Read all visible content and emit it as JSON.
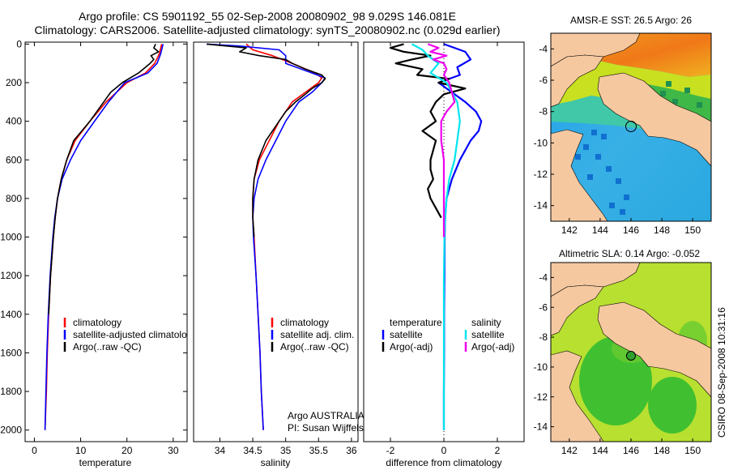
{
  "header": {
    "title_line1": "Argo profile: CS 5901192_55 02-Sep-2008 20080902_98 9.029S 146.081E",
    "title_line2": "Climatology: CARS2006. Satellite-adjusted climatology: synTS_20080902.nc (0.029d earlier)"
  },
  "colors": {
    "climatology": "#ff0000",
    "satellite": "#0000ff",
    "argo": "#000000",
    "salinity_satellite": "#00e5ee",
    "salinity_argo": "#ee00ee",
    "land": "#f5c8a0"
  },
  "chart_data": [
    {
      "type": "line",
      "id": "temperature",
      "xlabel": "temperature",
      "xlim": [
        -2,
        33
      ],
      "xticks": [
        0,
        10,
        20,
        30
      ],
      "ylim": [
        2060,
        -10
      ],
      "yticks": [
        0,
        200,
        400,
        600,
        800,
        1000,
        1200,
        1400,
        1600,
        1800,
        2000
      ],
      "legend": [
        "climatology",
        "satellite-adjusted climatology",
        "Argo(..raw -QC)"
      ],
      "series": [
        {
          "name": "climatology",
          "depth": [
            0,
            50,
            100,
            150,
            200,
            300,
            400,
            500,
            600,
            700,
            800,
            900,
            1000,
            1200,
            1400,
            1600,
            1800,
            2000
          ],
          "values": [
            27.5,
            27.0,
            26.0,
            24.0,
            20.0,
            15.5,
            12.0,
            8.8,
            7.0,
            5.8,
            5.0,
            4.5,
            4.1,
            3.5,
            3.1,
            2.8,
            2.6,
            2.3
          ]
        },
        {
          "name": "satellite",
          "depth": [
            0,
            50,
            100,
            150,
            200,
            300,
            400,
            500,
            600,
            700,
            800,
            900,
            1000,
            1200,
            1400,
            1600,
            1800,
            2000
          ],
          "values": [
            27.8,
            27.3,
            26.5,
            24.5,
            19.5,
            16.0,
            13.0,
            10.0,
            7.8,
            6.0,
            5.0,
            4.4,
            4.0,
            3.4,
            3.0,
            2.7,
            2.5,
            2.3
          ]
        },
        {
          "name": "argo",
          "depth": [
            0,
            20,
            40,
            60,
            80,
            100,
            150,
            200,
            250,
            300,
            400,
            500,
            600,
            700,
            800,
            900,
            1000,
            1200,
            1400
          ],
          "values": [
            26.2,
            25.8,
            26.8,
            25.2,
            25.8,
            25.0,
            22.5,
            19.0,
            16.5,
            15.0,
            12.0,
            8.5,
            7.0,
            5.8,
            5.0,
            4.5,
            4.1,
            3.5,
            3.1
          ]
        }
      ]
    },
    {
      "type": "line",
      "id": "salinity",
      "xlabel": "salinity",
      "xlim": [
        33.6,
        36.1
      ],
      "xticks": [
        34,
        34.5,
        35,
        35.5,
        36
      ],
      "ylim": [
        2060,
        -10
      ],
      "legend": [
        "climatology",
        "satellite adj. clim.",
        "Argo(..raw -QC)"
      ],
      "annotation": [
        "Argo AUSTRALIA",
        "PI: Susan Wijffels"
      ],
      "series": [
        {
          "name": "climatology",
          "depth": [
            0,
            30,
            60,
            100,
            150,
            175,
            200,
            250,
            300,
            400,
            500,
            600,
            700,
            800,
            900,
            1000,
            1200,
            1400,
            1600,
            1800,
            2000
          ],
          "values": [
            34.4,
            34.5,
            34.8,
            35.1,
            35.45,
            35.55,
            35.5,
            35.3,
            35.1,
            34.9,
            34.75,
            34.6,
            34.52,
            34.5,
            34.5,
            34.52,
            34.55,
            34.58,
            34.61,
            34.63,
            34.66
          ]
        },
        {
          "name": "satellite",
          "depth": [
            0,
            10,
            30,
            60,
            100,
            150,
            175,
            200,
            250,
            300,
            400,
            500,
            600,
            700,
            800,
            900,
            1000,
            1200,
            1400,
            1600,
            1800,
            2000
          ],
          "values": [
            33.8,
            34.3,
            34.9,
            35.0,
            35.0,
            35.4,
            35.6,
            35.55,
            35.4,
            35.2,
            35.0,
            34.85,
            34.7,
            34.58,
            34.52,
            34.5,
            34.51,
            34.55,
            34.58,
            34.61,
            34.63,
            34.66
          ]
        },
        {
          "name": "argo",
          "depth": [
            0,
            20,
            40,
            60,
            80,
            100,
            130,
            160,
            180,
            200,
            230,
            260,
            300,
            350,
            400,
            450,
            500,
            600,
            700,
            800,
            900,
            1000
          ],
          "values": [
            33.8,
            34.4,
            34.3,
            34.6,
            35.0,
            35.1,
            35.3,
            35.55,
            35.6,
            35.55,
            35.4,
            35.3,
            35.15,
            35.0,
            34.9,
            34.8,
            34.7,
            34.58,
            34.52,
            34.5,
            34.5,
            34.52
          ]
        }
      ]
    },
    {
      "type": "line",
      "id": "difference",
      "xlabel": "difference from climatology",
      "xlim": [
        -3.0,
        3.0
      ],
      "xticks": [
        -2,
        0,
        2
      ],
      "ylim": [
        2060,
        -10
      ],
      "legend_temperature": [
        "temperature",
        "satellite",
        "Argo(-adj)"
      ],
      "legend_salinity": [
        "salinity",
        "satellite",
        "Argo(-adj)"
      ],
      "series": [
        {
          "name": "temperature satellite",
          "depth": [
            0,
            40,
            80,
            120,
            160,
            200,
            250,
            300,
            350,
            400,
            450,
            500,
            600,
            700,
            800,
            900,
            1000,
            1200,
            1400,
            1600,
            1800,
            2000
          ],
          "values": [
            0.0,
            0.8,
            1.0,
            0.5,
            0.6,
            -0.2,
            0.3,
            0.8,
            1.2,
            1.4,
            1.3,
            1.0,
            0.6,
            0.3,
            0.1,
            0.05,
            0.03,
            0.02,
            0.01,
            0.01,
            0.0,
            0.0
          ]
        },
        {
          "name": "temperature argo",
          "depth": [
            0,
            20,
            40,
            60,
            80,
            100,
            130,
            160,
            180,
            200,
            230,
            260,
            300,
            350,
            400,
            450,
            500,
            550,
            600,
            650,
            700,
            750,
            800,
            850,
            900
          ],
          "values": [
            -1.5,
            -2.0,
            -1.5,
            -0.5,
            -1.2,
            -1.8,
            -0.8,
            -1.0,
            0.2,
            -0.2,
            0.8,
            0.0,
            -0.3,
            -0.5,
            -0.3,
            -0.8,
            -0.3,
            -0.4,
            -0.5,
            -0.5,
            -0.4,
            -0.6,
            -0.5,
            -0.3,
            -0.1
          ]
        },
        {
          "name": "salinity satellite",
          "depth": [
            0,
            30,
            60,
            100,
            150,
            200,
            250,
            300,
            400,
            500,
            600,
            700,
            800,
            900,
            1000,
            1200,
            1400,
            1600,
            1800,
            2000
          ],
          "values": [
            -1.2,
            -0.8,
            -0.6,
            -0.2,
            -0.5,
            0.1,
            0.3,
            0.5,
            0.6,
            0.5,
            0.4,
            0.2,
            0.1,
            0.05,
            0.02,
            0.0,
            0.0,
            0.0,
            0.0,
            0.0
          ]
        },
        {
          "name": "salinity argo",
          "depth": [
            0,
            20,
            40,
            60,
            80,
            100,
            130,
            160,
            200,
            250,
            300,
            350,
            400,
            500,
            600,
            700,
            800,
            900,
            1000
          ],
          "values": [
            -0.6,
            -0.2,
            -0.5,
            0.1,
            -0.4,
            0.0,
            0.1,
            0.0,
            0.2,
            0.3,
            0.4,
            0.1,
            -0.1,
            -0.1,
            0.0,
            0.0,
            0.0,
            0.0,
            0.0
          ]
        }
      ]
    },
    {
      "type": "heatmap",
      "id": "sst_map",
      "title": "AMSR-E SST: 26.5 Argo: 26",
      "xticks": [
        142,
        144,
        146,
        148,
        150
      ],
      "yticks": [
        -4,
        -6,
        -8,
        -10,
        -12,
        -14
      ],
      "xlim": [
        140.8,
        151.2
      ],
      "ylim": [
        -15,
        -3
      ],
      "marker": {
        "lon": 146.081,
        "lat": -9.029
      }
    },
    {
      "type": "heatmap",
      "id": "sla_map",
      "title": "Altimetric SLA: 0.14 Argo: -0.052",
      "xticks": [
        142,
        144,
        146,
        148,
        150
      ],
      "yticks": [
        -4,
        -6,
        -8,
        -10,
        -12,
        -14
      ],
      "xlim": [
        140.8,
        151.2
      ],
      "ylim": [
        -15,
        -3
      ],
      "marker": {
        "lon": 146.081,
        "lat": -9.029
      }
    }
  ],
  "footer": {
    "stamp": "CSIRO 08-Sep-2008 10:31:16"
  }
}
